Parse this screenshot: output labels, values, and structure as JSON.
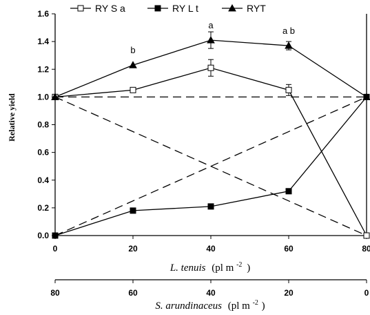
{
  "chart_data": {
    "type": "line",
    "title": "",
    "ylabel": "Relative yield",
    "xlabel": {
      "species": "L. tenuis",
      "unit": "(pl m",
      "exponent": "-2",
      "close": ")"
    },
    "x2label": {
      "species": "S. arundinaceus",
      "unit": "(pl m",
      "exponent": "-2",
      "close": ")"
    },
    "x": [
      0,
      20,
      40,
      60,
      80
    ],
    "xlim": [
      0,
      80
    ],
    "ylim": [
      0,
      1.6
    ],
    "x_ticks": [
      "0",
      "20",
      "40",
      "60",
      "80"
    ],
    "x2_ticks": [
      "80",
      "60",
      "40",
      "20",
      "0"
    ],
    "y_ticks": [
      "0.0",
      "0.2",
      "0.4",
      "0.6",
      "0.8",
      "1.0",
      "1.2",
      "1.4",
      "1.6"
    ],
    "series": [
      {
        "name": "RY S a",
        "marker": "open-square",
        "values": [
          1.0,
          1.05,
          1.21,
          1.05,
          0.0
        ],
        "error": [
          0,
          0,
          0.06,
          0.04,
          0
        ]
      },
      {
        "name": "RY L t",
        "marker": "filled-square",
        "values": [
          0.0,
          0.18,
          0.21,
          0.32,
          1.0
        ],
        "error": [
          0,
          0,
          0,
          0,
          0
        ]
      },
      {
        "name": "RYT",
        "marker": "filled-triangle",
        "values": [
          1.0,
          1.23,
          1.41,
          1.37,
          1.0
        ],
        "error": [
          0,
          0,
          0.06,
          0.03,
          0
        ]
      }
    ],
    "reference_lines": [
      {
        "x": [
          0,
          80
        ],
        "values": [
          1.0,
          1.0
        ]
      },
      {
        "x": [
          0,
          80
        ],
        "values": [
          1.0,
          0.0
        ]
      },
      {
        "x": [
          0,
          80
        ],
        "values": [
          0.0,
          1.0
        ]
      }
    ],
    "annotations": [
      {
        "x": 20,
        "y": 1.23,
        "text": "b"
      },
      {
        "x": 40,
        "y": 1.41,
        "text": "a"
      },
      {
        "x": 60,
        "y": 1.37,
        "text": "a b"
      }
    ],
    "legend_position": "top",
    "grid": false
  }
}
